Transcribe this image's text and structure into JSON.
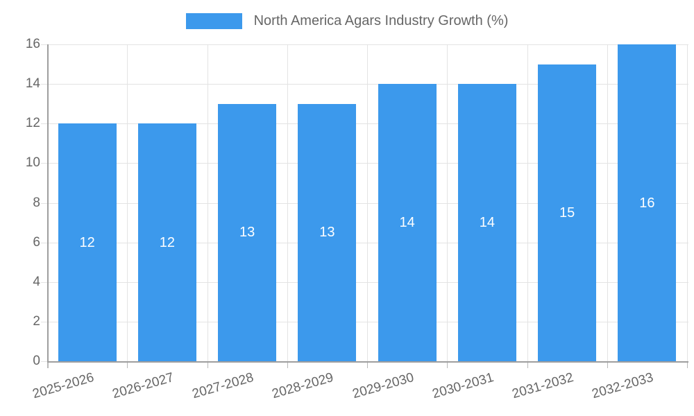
{
  "chart_data": {
    "type": "bar",
    "title": "",
    "xlabel": "",
    "ylabel": "",
    "categories": [
      "2025-2026",
      "2026-2027",
      "2027-2028",
      "2028-2029",
      "2029-2030",
      "2030-2031",
      "2031-2032",
      "2032-2033"
    ],
    "series": [
      {
        "name": "North America Agars Industry Growth (%)",
        "values": [
          12,
          12,
          13,
          13,
          14,
          14,
          15,
          16
        ]
      }
    ],
    "value_labels": [
      "12",
      "12",
      "13",
      "13",
      "14",
      "14",
      "15",
      "16"
    ],
    "ylim": [
      0,
      16
    ],
    "yticks": [
      0,
      2,
      4,
      6,
      8,
      10,
      12,
      14,
      16
    ],
    "grid": true,
    "legend_position": "top"
  },
  "legend": {
    "label": "North America Agars Industry Growth (%)"
  },
  "colors": {
    "bar": "#3C99EC",
    "axis_text": "#666666",
    "value_text": "#ffffff",
    "gridline": "#e3e3e3",
    "axis_line": "#9e9e9e",
    "tick_mark": "#b9b9b9",
    "background": "#ffffff"
  }
}
